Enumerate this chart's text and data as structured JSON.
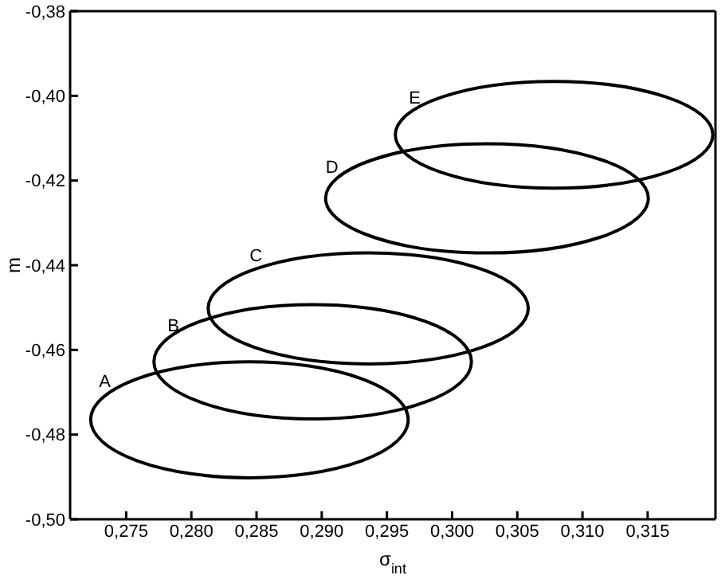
{
  "chart_data": {
    "type": "line",
    "xlabel": "σ$_{int}$",
    "ylabel": "m",
    "xlim": [
      0.2707,
      0.3202
    ],
    "ylim": [
      -0.5,
      -0.38
    ],
    "xticks": [
      {
        "value": 0.275,
        "label": "0,275"
      },
      {
        "value": 0.28,
        "label": "0,280"
      },
      {
        "value": 0.285,
        "label": "0,285"
      },
      {
        "value": 0.29,
        "label": "0,290"
      },
      {
        "value": 0.295,
        "label": "0,295"
      },
      {
        "value": 0.3,
        "label": "0,300"
      },
      {
        "value": 0.305,
        "label": "0,305"
      },
      {
        "value": 0.31,
        "label": "0,310"
      },
      {
        "value": 0.315,
        "label": "0,315"
      }
    ],
    "yticks": [
      {
        "value": -0.5,
        "label": "-0,50"
      },
      {
        "value": -0.48,
        "label": "-0,48"
      },
      {
        "value": -0.46,
        "label": "-0,46"
      },
      {
        "value": -0.44,
        "label": "-0,44"
      },
      {
        "value": -0.42,
        "label": "-0,42"
      },
      {
        "value": -0.4,
        "label": "-0,40"
      },
      {
        "value": -0.38,
        "label": "-0,38"
      }
    ],
    "annotations": [
      "A",
      "B",
      "C",
      "D",
      "E"
    ]
  }
}
